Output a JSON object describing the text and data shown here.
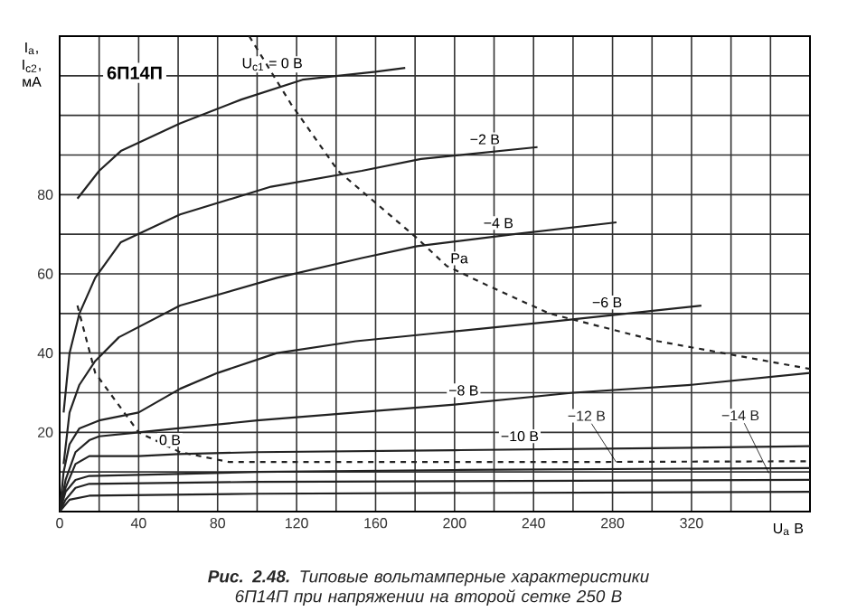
{
  "chart_data": {
    "type": "line",
    "title": "6П14П",
    "xlabel": "U$_{а}$ В",
    "ylabel": "I$_{а}$, I$_{с2}$, мА",
    "annotations": [
      "**Рис. 2.48.** Типовые вольтамперные характеристики 6П14П при напряжении на второй сетке 250 В"
    ],
    "xlim": [
      0,
      380
    ],
    "ylim": [
      0,
      120
    ],
    "xticks": [
      0,
      {
        "value": 20,
        "label": null
      },
      40,
      {
        "value": 60,
        "label": null
      },
      80,
      {
        "value": 100,
        "label": null
      },
      120,
      {
        "value": 140,
        "label": null
      },
      160,
      {
        "value": 180,
        "label": null
      },
      200,
      {
        "value": 220,
        "label": null
      },
      240,
      {
        "value": 260,
        "label": null
      },
      280,
      {
        "value": 300,
        "label": null
      },
      320,
      {
        "value": 340,
        "label": null
      },
      {
        "value": 360,
        "label": null
      },
      {
        "value": 380,
        "label": null
      }
    ],
    "yticks": [
      {
        "value": 0,
        "label": null
      },
      {
        "value": 10,
        "label": null
      },
      20,
      {
        "value": 30,
        "label": null
      },
      40,
      {
        "value": 50,
        "label": null
      },
      60,
      {
        "value": 70,
        "label": null
      },
      80,
      {
        "value": 90,
        "label": null
      },
      {
        "value": 100,
        "label": null
      },
      {
        "value": 110,
        "label": null
      },
      {
        "value": 120,
        "label": null
      }
    ],
    "grid": true,
    "line_style": "solid",
    "series": [
      {
        "name": "U$_{с1}$ = 0 В",
        "color": "#222222",
        "x": [
          9,
          20,
          31,
          61,
          92,
          123,
          160,
          175
        ],
        "values": [
          79,
          86,
          91,
          98,
          104,
          109,
          111,
          112
        ]
      },
      {
        "name": "−2 В",
        "color": "#222222",
        "x": [
          2,
          5,
          10,
          18,
          31,
          61,
          107,
          153,
          183,
          242
        ],
        "values": [
          25,
          40,
          50,
          59,
          68,
          75,
          82,
          86,
          89,
          92
        ]
      },
      {
        "name": "−4 В",
        "color": "#222222",
        "x": [
          2,
          5,
          10,
          18,
          30,
          61,
          110,
          153,
          181,
          230,
          282
        ],
        "values": [
          12,
          25,
          32,
          38,
          44,
          52,
          59,
          64,
          67,
          70,
          73
        ]
      },
      {
        "name": "−6 В",
        "color": "#222222",
        "x": [
          0,
          2,
          5,
          10,
          20,
          40,
          61,
          80,
          110,
          150,
          190,
          250,
          325
        ],
        "values": [
          0,
          10,
          17,
          21,
          23,
          25,
          31,
          35,
          40,
          43,
          45,
          48,
          52
        ]
      },
      {
        "name": "−8 В",
        "color": "#222222",
        "x": [
          0,
          3,
          8,
          15,
          20,
          40,
          60,
          100,
          150,
          200,
          260,
          320,
          380
        ],
        "values": [
          0,
          8,
          15,
          18,
          19,
          20,
          21,
          23,
          25,
          27,
          30,
          32,
          35
        ]
      },
      {
        "name": "−10 В",
        "color": "#222222",
        "x": [
          0,
          3,
          8,
          15,
          40,
          60,
          100,
          200,
          300,
          380
        ],
        "values": [
          0,
          6,
          12,
          14,
          14,
          14.5,
          15,
          15.5,
          16,
          16.5
        ]
      },
      {
        "name": "−12 В",
        "color": "#222222",
        "x": [
          0,
          3,
          8,
          15,
          60,
          100,
          200,
          380
        ],
        "values": [
          0,
          5,
          8,
          9,
          9.5,
          10,
          10.5,
          11
        ]
      },
      {
        "name": "−14 В",
        "color": "#222222",
        "x": [
          0,
          3,
          8,
          15,
          100,
          380
        ],
        "values": [
          0,
          3,
          6,
          7,
          7.5,
          8
        ]
      },
      {
        "color": "#222222",
        "x": [
          0,
          5,
          15,
          100,
          380
        ],
        "values": [
          0,
          3,
          4,
          4.5,
          5
        ]
      },
      {
        "name": "Pа",
        "color": "#222222",
        "line_style": "dashed",
        "x": [
          96,
          117,
          141,
          181,
          196,
          217,
          248,
          303,
          380
        ],
        "values": [
          120,
          103,
          86,
          69,
          62,
          57,
          50,
          43,
          36
        ]
      },
      {
        "name": "0 В",
        "color": "#222222",
        "line_style": "dashed",
        "x": [
          9,
          18,
          40,
          61,
          86,
          150,
          250,
          380
        ],
        "values": [
          52,
          35,
          20,
          15,
          12.5,
          12.5,
          12.5,
          12.7
        ]
      }
    ]
  }
}
